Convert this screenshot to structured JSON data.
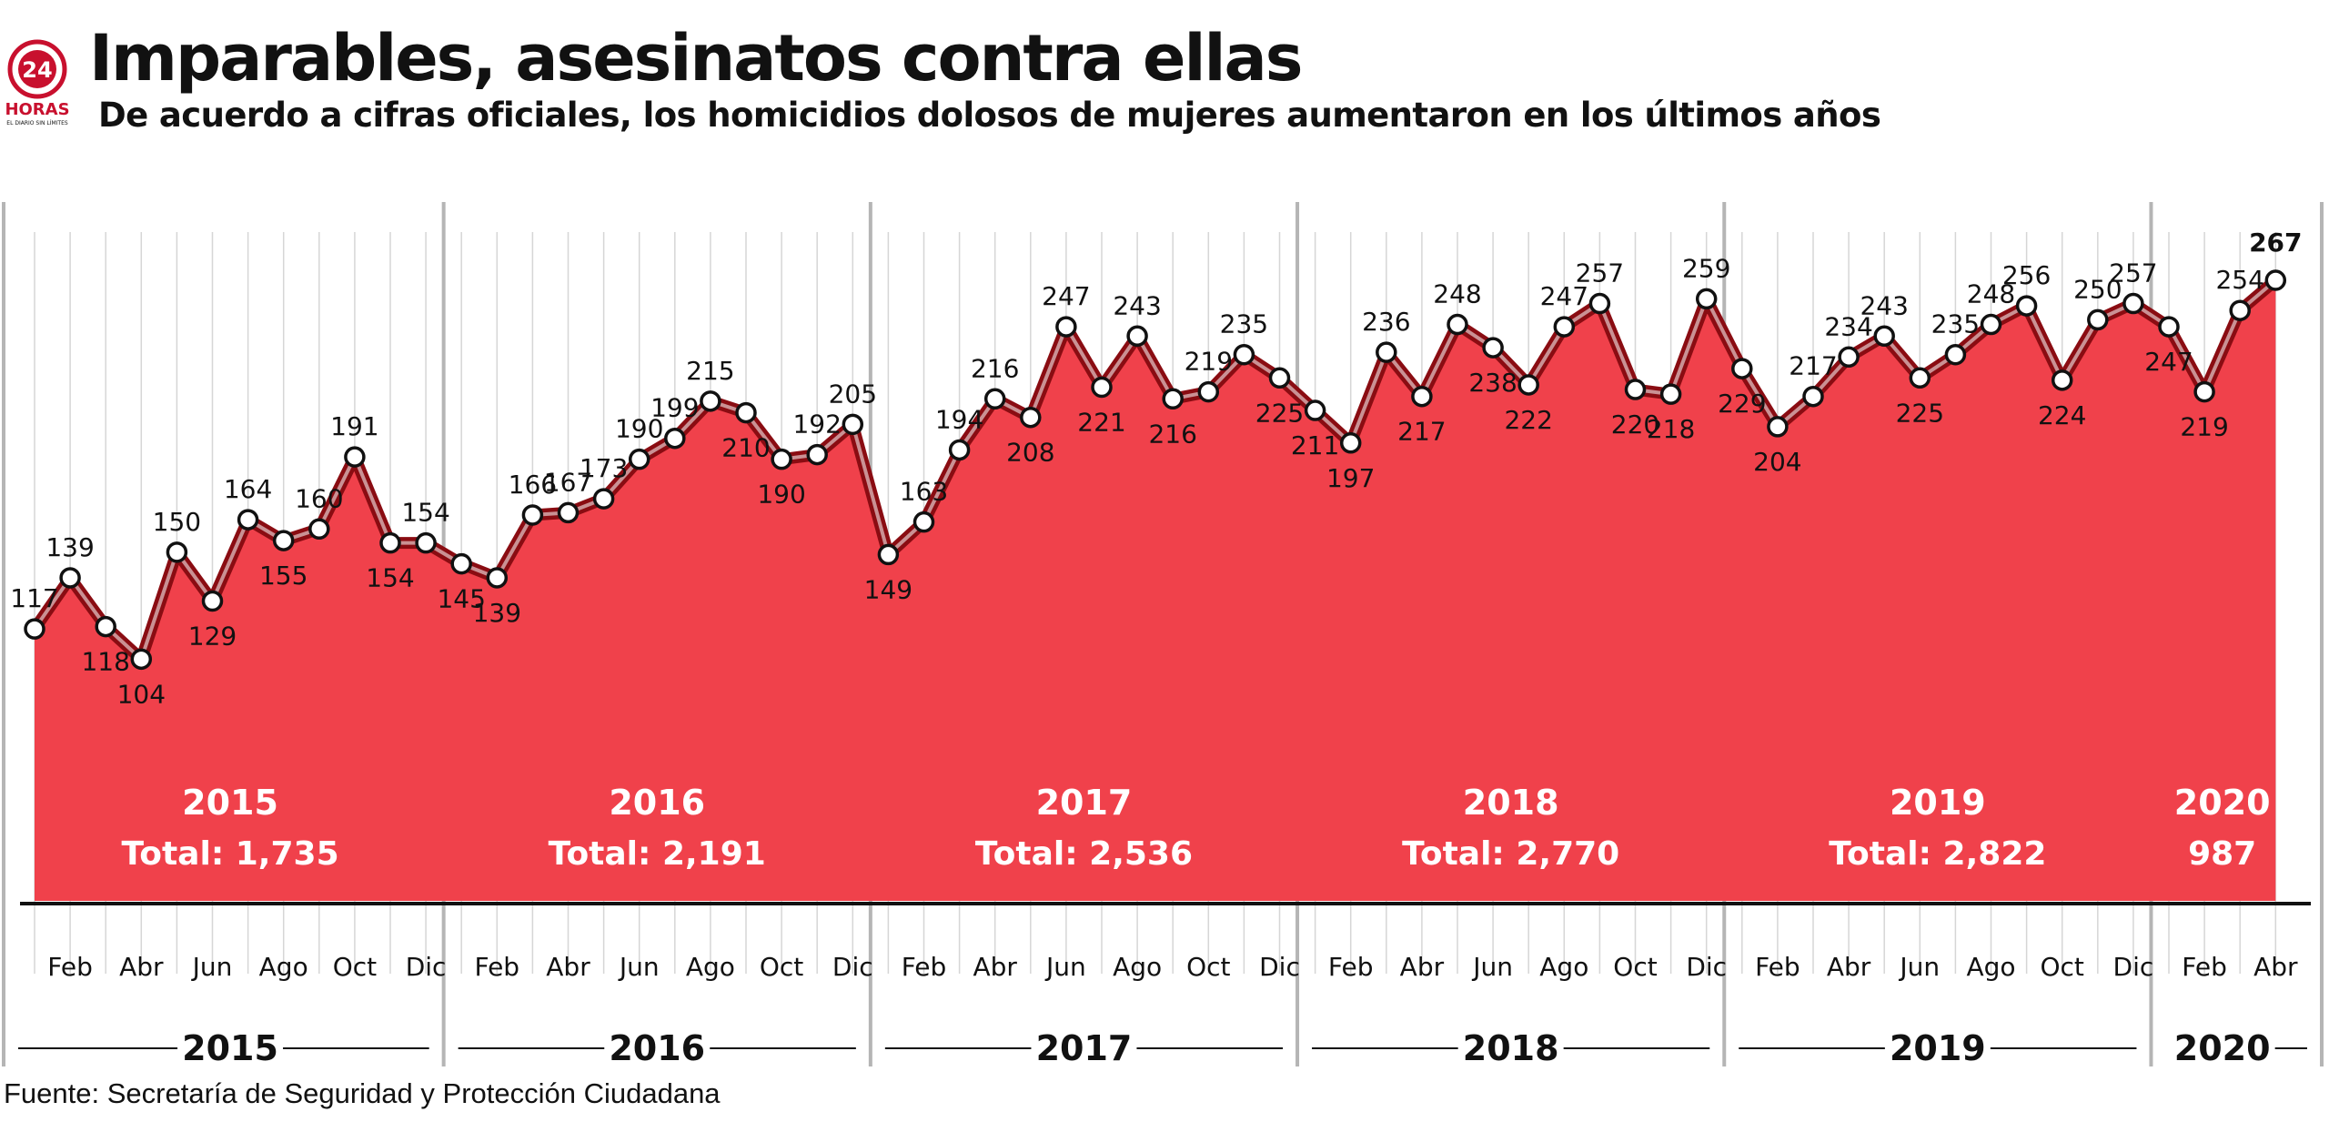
{
  "header": {
    "title": "Imparables, asesinatos contra ellas",
    "subtitle": "De acuerdo a cifras oficiales, los homicidios dolosos de mujeres aumentaron en los últimos años"
  },
  "logo": {
    "number": "24",
    "word": "HORAS",
    "tagline": "EL DIARIO SIN LÍMITES"
  },
  "source": "Fuente: Secretaría de Seguridad y Protección Ciudadana",
  "colors": {
    "fill": "#f0414b",
    "line": "#8a0c12",
    "axis": "#111111",
    "grid": "#d6d6d6",
    "year_divider": "#b5b5b5"
  },
  "chart_data": {
    "type": "area",
    "title": "Imparables, asesinatos contra ellas",
    "subtitle": "De acuerdo a cifras oficiales, los homicidios dolosos de mujeres aumentaron en los últimos años",
    "xlabel": "",
    "ylabel": "",
    "ylim": [
      0,
      267
    ],
    "grid": "vertical",
    "x": [
      "2015-01",
      "2015-02",
      "2015-03",
      "2015-04",
      "2015-05",
      "2015-06",
      "2015-07",
      "2015-08",
      "2015-09",
      "2015-10",
      "2015-11",
      "2015-12",
      "2016-01",
      "2016-02",
      "2016-03",
      "2016-04",
      "2016-05",
      "2016-06",
      "2016-07",
      "2016-08",
      "2016-09",
      "2016-10",
      "2016-11",
      "2016-12",
      "2017-01",
      "2017-02",
      "2017-03",
      "2017-04",
      "2017-05",
      "2017-06",
      "2017-07",
      "2017-08",
      "2017-09",
      "2017-10",
      "2017-11",
      "2017-12",
      "2018-01",
      "2018-02",
      "2018-03",
      "2018-04",
      "2018-05",
      "2018-06",
      "2018-07",
      "2018-08",
      "2018-09",
      "2018-10",
      "2018-11",
      "2018-12",
      "2019-01",
      "2019-02",
      "2019-03",
      "2019-04",
      "2019-05",
      "2019-06",
      "2019-07",
      "2019-08",
      "2019-09",
      "2019-10",
      "2019-11",
      "2019-12",
      "2020-01",
      "2020-02",
      "2020-03",
      "2020-04"
    ],
    "values": [
      117,
      139,
      118,
      104,
      150,
      129,
      164,
      155,
      160,
      191,
      154,
      154,
      145,
      139,
      166,
      167,
      173,
      190,
      199,
      215,
      210,
      190,
      192,
      205,
      149,
      163,
      194,
      216,
      208,
      247,
      221,
      243,
      216,
      219,
      235,
      225,
      211,
      197,
      236,
      217,
      248,
      238,
      222,
      247,
      257,
      220,
      218,
      259,
      229,
      204,
      217,
      234,
      243,
      225,
      235,
      248,
      256,
      224,
      250,
      257,
      247,
      219,
      254,
      267
    ],
    "month_tick_labels": [
      "Feb",
      "Abr",
      "Jun",
      "Ago",
      "Oct",
      "Dic"
    ],
    "last_year_tick_labels": [
      "Feb",
      "Abr"
    ],
    "years": [
      {
        "year": "2015",
        "total_label": "Total: 1,735"
      },
      {
        "year": "2016",
        "total_label": "Total: 2,191"
      },
      {
        "year": "2017",
        "total_label": "Total: 2,536"
      },
      {
        "year": "2018",
        "total_label": "Total: 2,770"
      },
      {
        "year": "2019",
        "total_label": "Total: 2,822"
      },
      {
        "year": "2020",
        "total_label": "987"
      }
    ]
  }
}
